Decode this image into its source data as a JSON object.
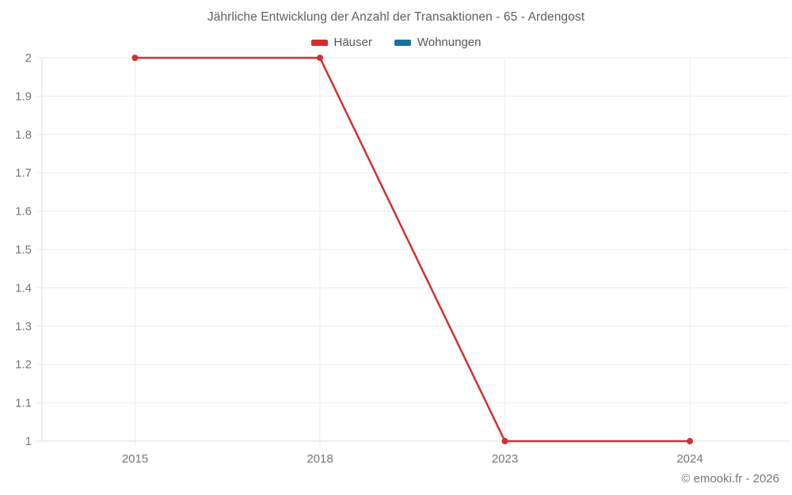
{
  "title": "Jährliche Entwicklung der Anzahl der Transaktionen - 65 - Ardengost",
  "footer": "© emooki.fr - 2026",
  "colors": {
    "hauser_red": "#d32f2f",
    "wohnungen_blue": "#1a6fa5",
    "grid": "#ebebeb",
    "axis": "#dcdcdc",
    "tick_text": "#757575"
  },
  "chart_data": {
    "type": "line",
    "title": "Jährliche Entwicklung der Anzahl der Transaktionen - 65 - Ardengost",
    "categories": [
      "2015",
      "2018",
      "2023",
      "2024"
    ],
    "series": [
      {
        "name": "Häuser",
        "color": "#d32f2f",
        "values": [
          2,
          2,
          1,
          1
        ]
      },
      {
        "name": "Wohnungen",
        "color": "#1a6fa5",
        "values": []
      }
    ],
    "xlabel": "",
    "ylabel": "",
    "ylim": [
      1,
      2
    ],
    "yticks": [
      1,
      1.1,
      1.2,
      1.3,
      1.4,
      1.5,
      1.6,
      1.7,
      1.8,
      1.9,
      2
    ],
    "grid": true,
    "legend_position": "top",
    "marker": "circle"
  }
}
